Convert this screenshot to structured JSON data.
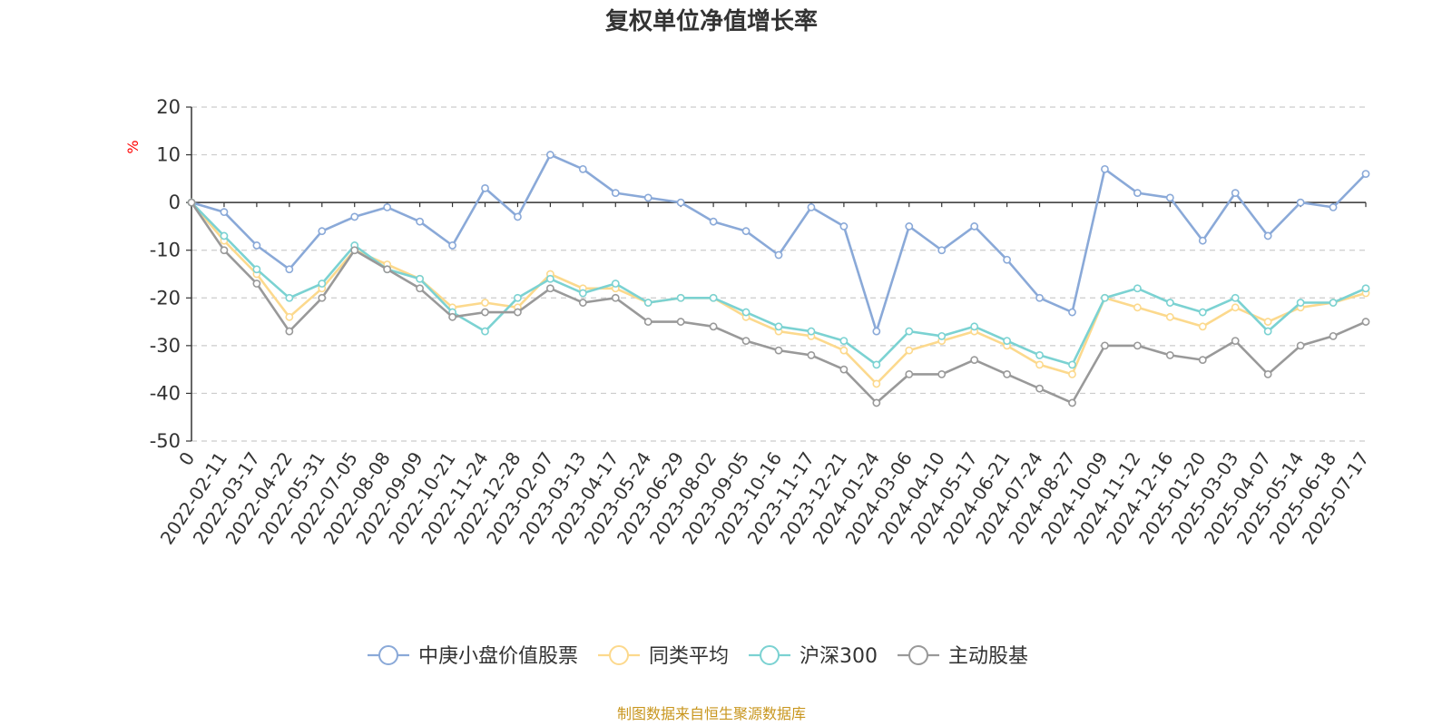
{
  "chart_data": {
    "type": "line",
    "title": "复权单位净值增长率",
    "ylabel": "%",
    "ylim": [
      -50,
      20
    ],
    "yticks": [
      20,
      10,
      0,
      -10,
      -20,
      -30,
      -40,
      -50
    ],
    "grid": true,
    "legend_position": "bottom",
    "x_tick_labels": [
      "0",
      "2022-02-11",
      "2022-03-17",
      "2022-04-22",
      "2022-05-31",
      "2022-07-05",
      "2022-08-08",
      "2022-09-09",
      "2022-10-21",
      "2022-11-24",
      "2022-12-28",
      "2023-02-07",
      "2023-03-13",
      "2023-04-17",
      "2023-05-24",
      "2023-06-29",
      "2023-08-02",
      "2023-09-05",
      "2023-10-16",
      "2023-11-17",
      "2023-12-21",
      "2024-01-24",
      "2024-03-06",
      "2024-04-10",
      "2024-05-17",
      "2024-06-21",
      "2024-07-24",
      "2024-08-27",
      "2024-10-09",
      "2024-11-12",
      "2024-12-16",
      "2025-01-20",
      "2025-03-03",
      "2025-04-07",
      "2025-05-14",
      "2025-06-18",
      "2025-07-17"
    ],
    "series": [
      {
        "name": "中庚小盘价值股票",
        "color": "#8aa9d8",
        "values": [
          0,
          -2,
          -9,
          -14,
          -6,
          -3,
          -1,
          -4,
          -9,
          3,
          -3,
          10,
          7,
          2,
          1,
          0,
          -4,
          -6,
          -11,
          -1,
          -5,
          -27,
          -5,
          -10,
          -5,
          -12,
          -20,
          -23,
          7,
          2,
          1,
          -8,
          2,
          -7,
          0,
          -1,
          6
        ]
      },
      {
        "name": "同类平均",
        "color": "#fcd98d",
        "values": [
          0,
          -8,
          -15,
          -24,
          -18,
          -10,
          -13,
          -16,
          -22,
          -21,
          -22,
          -15,
          -18,
          -18,
          -21,
          -20,
          -20,
          -24,
          -27,
          -28,
          -31,
          -38,
          -31,
          -29,
          -27,
          -30,
          -34,
          -36,
          -20,
          -22,
          -24,
          -26,
          -22,
          -25,
          -22,
          -21,
          -19
        ]
      },
      {
        "name": "沪深300",
        "color": "#7bd2d2",
        "values": [
          0,
          -7,
          -14,
          -20,
          -17,
          -9,
          -14,
          -16,
          -23,
          -27,
          -20,
          -16,
          -19,
          -17,
          -21,
          -20,
          -20,
          -23,
          -26,
          -27,
          -29,
          -34,
          -27,
          -28,
          -26,
          -29,
          -32,
          -34,
          -20,
          -18,
          -21,
          -23,
          -20,
          -27,
          -21,
          -21,
          -18
        ]
      },
      {
        "name": "主动股基",
        "color": "#999999",
        "values": [
          0,
          -10,
          -17,
          -27,
          -20,
          -10,
          -14,
          -18,
          -24,
          -23,
          -23,
          -18,
          -21,
          -20,
          -25,
          -25,
          -26,
          -29,
          -31,
          -32,
          -35,
          -42,
          -36,
          -36,
          -33,
          -36,
          -39,
          -42,
          -30,
          -30,
          -32,
          -33,
          -29,
          -36,
          -30,
          -28,
          -25
        ]
      }
    ],
    "source_note": "制图数据来自恒生聚源数据库"
  }
}
